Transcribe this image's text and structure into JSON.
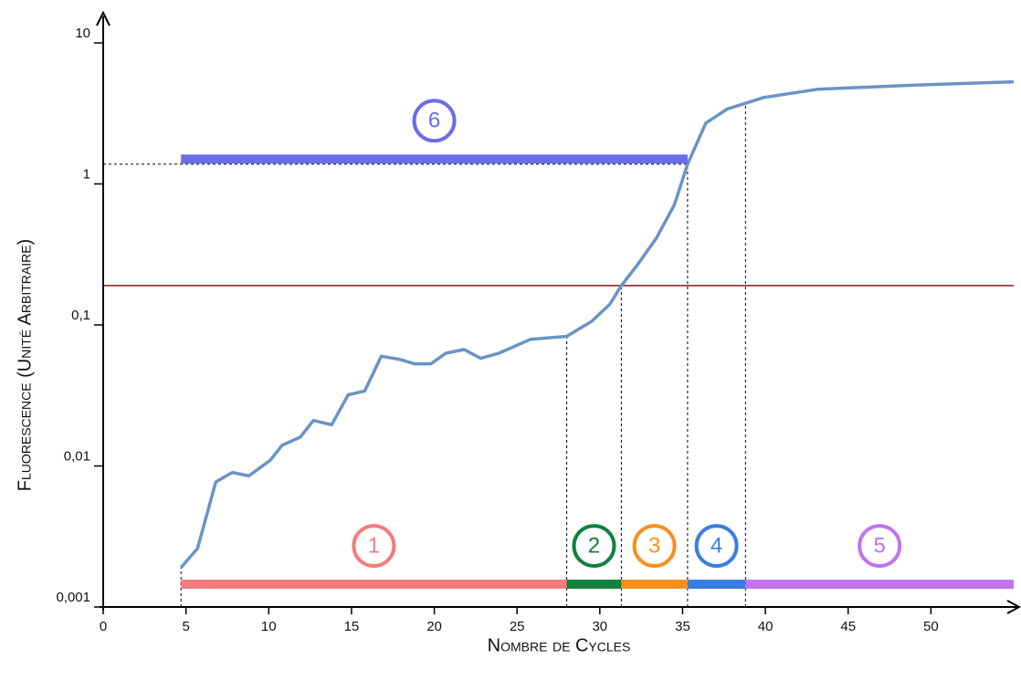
{
  "chart_data": {
    "type": "line",
    "x_label": "Nombre de Cycles",
    "y_label": "Fluorescence  (Unité Arbitraire)",
    "log_y": true,
    "xlim": [
      0,
      55
    ],
    "xticks": [
      0,
      5,
      10,
      15,
      20,
      25,
      30,
      35,
      40,
      45,
      50
    ],
    "ylim": [
      0.001,
      10
    ],
    "yticks": [
      {
        "value": 0.001,
        "label": "0,001"
      },
      {
        "value": 0.01,
        "label": "0,01"
      },
      {
        "value": 0.1,
        "label": "0,1"
      },
      1,
      10
    ],
    "threshold": {
      "value": 0.19,
      "color": "#8b1a1a"
    },
    "series": [
      {
        "color": "#6a94c4",
        "x": [
          4.7,
          5.7,
          6.8,
          7.8,
          8.8,
          10.1,
          10.8,
          11.9,
          12.7,
          13.8,
          14.8,
          15.8,
          16.8,
          17.9,
          18.8,
          19.8,
          20.7,
          21.8,
          22.8,
          23.9,
          25.8,
          28.0,
          29.5,
          30.6,
          31.3,
          32.3,
          33.4,
          34.5,
          35.3,
          36.4,
          37.7,
          39.9,
          43.2,
          48.7,
          55
        ],
        "values": [
          0.0019,
          0.0026,
          0.0077,
          0.009,
          0.0085,
          0.011,
          0.014,
          0.016,
          0.021,
          0.0196,
          0.032,
          0.034,
          0.06,
          0.057,
          0.053,
          0.053,
          0.063,
          0.067,
          0.058,
          0.063,
          0.079,
          0.083,
          0.106,
          0.14,
          0.19,
          0.27,
          0.41,
          0.71,
          1.38,
          2.7,
          3.4,
          4.1,
          4.7,
          5.0,
          5.3
        ]
      }
    ],
    "phases": [
      {
        "label": "1",
        "start": 4.7,
        "end": 28.0,
        "level": 0.00145,
        "color": "#f47c7c"
      },
      {
        "label": "2",
        "start": 28.0,
        "end": 31.3,
        "level": 0.00145,
        "color": "#118040"
      },
      {
        "label": "3",
        "start": 31.3,
        "end": 35.3,
        "level": 0.00145,
        "color": "#f5901e"
      },
      {
        "label": "4",
        "start": 35.3,
        "end": 38.8,
        "level": 0.00145,
        "color": "#3a7de0"
      },
      {
        "label": "5",
        "start": 38.8,
        "end": 55,
        "level": 0.00145,
        "color": "#c173f0"
      },
      {
        "label": "6",
        "start": 4.7,
        "end": 35.3,
        "level": 1.5,
        "color": "#6c6ce6"
      }
    ]
  }
}
